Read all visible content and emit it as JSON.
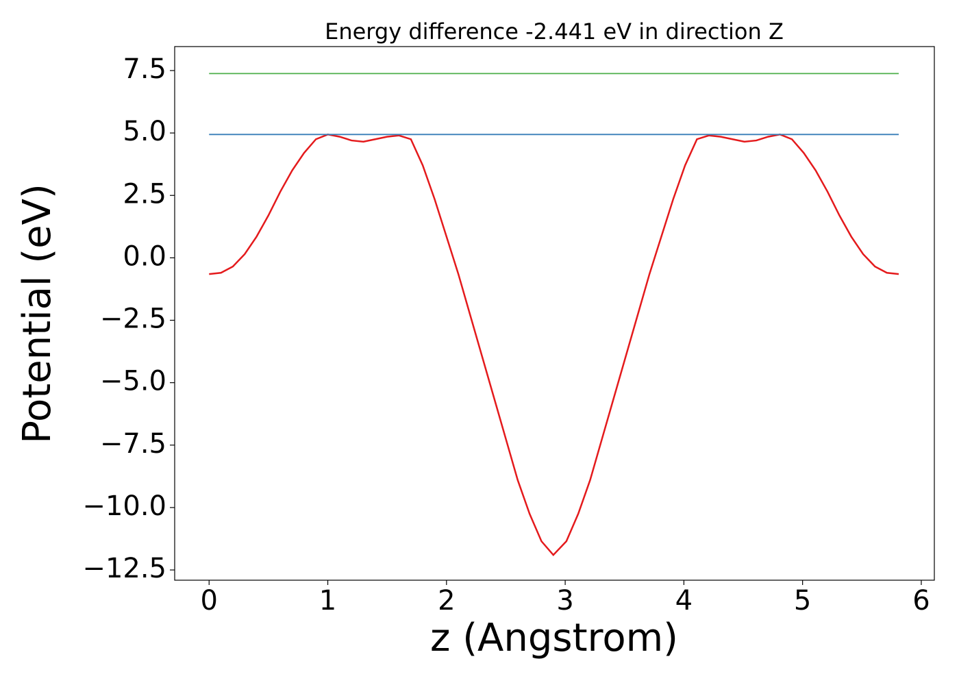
{
  "chart_data": {
    "type": "line",
    "title": "Energy difference -2.441 eV in direction Z",
    "xlabel": "z (Angstrom)",
    "ylabel": "Potential (eV)",
    "xlim": [
      -0.29,
      6.11
    ],
    "ylim": [
      -12.91,
      8.46
    ],
    "xticks": [
      0,
      1,
      2,
      3,
      4,
      5,
      6
    ],
    "yticks": [
      {
        "value": -12.5,
        "label": "−12.5"
      },
      {
        "value": -10,
        "label": "−10.0"
      },
      {
        "value": -7.5,
        "label": "−7.5"
      },
      {
        "value": -5,
        "label": "−5.0"
      },
      {
        "value": -2.5,
        "label": "−2.5"
      },
      {
        "value": 0,
        "label": "0.0"
      },
      {
        "value": 2.5,
        "label": "2.5"
      },
      {
        "value": 5,
        "label": "5.0"
      },
      7.5
    ],
    "grid": false,
    "series": [
      {
        "color": "#e41a1c",
        "x": [
          0,
          0.1,
          0.2,
          0.3,
          0.4,
          0.5,
          0.6,
          0.7,
          0.8,
          0.9,
          1.0,
          1.1,
          1.2,
          1.3,
          1.4,
          1.5,
          1.6,
          1.7,
          1.8,
          1.9,
          2.0,
          2.1,
          2.2,
          2.3,
          2.4,
          2.5,
          2.6,
          2.7,
          2.8,
          2.9,
          3.01,
          3.11,
          3.21,
          3.31,
          3.41,
          3.51,
          3.61,
          3.71,
          3.81,
          3.91,
          4.01,
          4.11,
          4.21,
          4.31,
          4.41,
          4.51,
          4.61,
          4.71,
          4.81,
          4.91,
          5.01,
          5.11,
          5.21,
          5.31,
          5.41,
          5.51,
          5.61,
          5.71,
          5.81
        ],
        "values": [
          -0.65,
          -0.6,
          -0.35,
          0.15,
          0.85,
          1.7,
          2.65,
          3.5,
          4.2,
          4.75,
          4.94,
          4.85,
          4.7,
          4.65,
          4.75,
          4.85,
          4.9,
          4.75,
          3.7,
          2.35,
          0.85,
          -0.65,
          -2.3,
          -3.95,
          -5.6,
          -7.25,
          -8.9,
          -10.25,
          -11.35,
          -11.9,
          -11.35,
          -10.25,
          -8.9,
          -7.25,
          -5.6,
          -3.95,
          -2.3,
          -0.65,
          0.85,
          2.35,
          3.7,
          4.75,
          4.9,
          4.85,
          4.75,
          4.65,
          4.7,
          4.85,
          4.94,
          4.75,
          4.2,
          3.5,
          2.65,
          1.7,
          0.85,
          0.15,
          -0.35,
          -0.6,
          -0.65
        ]
      },
      {
        "color": "#377eb8",
        "x": [
          0,
          5.81
        ],
        "values": [
          4.94,
          4.94
        ]
      },
      {
        "color": "#4daf4a",
        "x": [
          0,
          5.81
        ],
        "values": [
          7.38,
          7.38
        ]
      }
    ]
  }
}
